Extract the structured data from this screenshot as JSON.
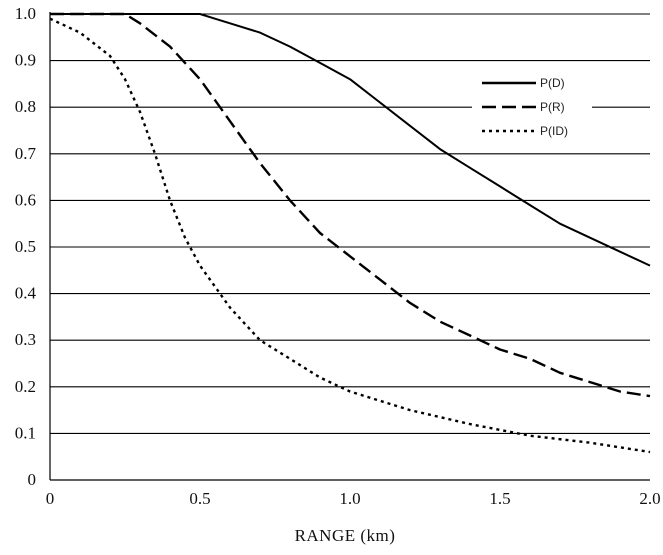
{
  "chart_data": {
    "type": "line",
    "title": "",
    "xlabel": "RANGE (km)",
    "ylabel": "",
    "xlim": [
      0,
      2.0
    ],
    "ylim": [
      0,
      1.0
    ],
    "x_ticks": [
      "0",
      "0.5",
      "1.0",
      "1.5",
      "2.0"
    ],
    "x_tick_values": [
      0,
      0.5,
      1.0,
      1.5,
      2.0
    ],
    "y_ticks": [
      "0",
      "0.1",
      "0.2",
      "0.3",
      "0.4",
      "0.5",
      "0.6",
      "0.7",
      "0.8",
      "0.9",
      "1.0"
    ],
    "y_tick_values": [
      0,
      0.1,
      0.2,
      0.3,
      0.4,
      0.5,
      0.6,
      0.7,
      0.8,
      0.9,
      1.0
    ],
    "grid": "horizontal",
    "legend_position": "right",
    "series": [
      {
        "name": "P(D)",
        "style": "solid",
        "color": "#000000",
        "x": [
          0,
          0.25,
          0.5,
          0.55,
          0.6,
          0.7,
          0.8,
          0.9,
          1.0,
          1.1,
          1.2,
          1.3,
          1.4,
          1.5,
          1.6,
          1.7,
          1.8,
          1.9,
          2.0
        ],
        "y": [
          1.0,
          1.0,
          1.0,
          0.99,
          0.98,
          0.96,
          0.93,
          0.895,
          0.86,
          0.81,
          0.76,
          0.71,
          0.67,
          0.63,
          0.59,
          0.55,
          0.52,
          0.49,
          0.46
        ]
      },
      {
        "name": "P(R)",
        "style": "dashed",
        "color": "#000000",
        "x": [
          0,
          0.1,
          0.2,
          0.25,
          0.3,
          0.4,
          0.5,
          0.6,
          0.7,
          0.8,
          0.9,
          1.0,
          1.1,
          1.2,
          1.3,
          1.4,
          1.5,
          1.6,
          1.7,
          1.8,
          1.9,
          2.0
        ],
        "y": [
          1.0,
          1.0,
          1.0,
          1.0,
          0.98,
          0.93,
          0.86,
          0.77,
          0.68,
          0.6,
          0.53,
          0.48,
          0.43,
          0.38,
          0.34,
          0.31,
          0.28,
          0.26,
          0.23,
          0.21,
          0.19,
          0.18
        ]
      },
      {
        "name": "P(ID)",
        "style": "dotted",
        "color": "#000000",
        "x": [
          0,
          0.1,
          0.2,
          0.25,
          0.3,
          0.35,
          0.4,
          0.45,
          0.5,
          0.6,
          0.7,
          0.8,
          0.9,
          1.0,
          1.2,
          1.4,
          1.6,
          1.8,
          2.0
        ],
        "y": [
          0.99,
          0.96,
          0.91,
          0.86,
          0.79,
          0.7,
          0.6,
          0.52,
          0.46,
          0.37,
          0.3,
          0.26,
          0.22,
          0.19,
          0.15,
          0.12,
          0.095,
          0.08,
          0.06
        ]
      }
    ]
  }
}
